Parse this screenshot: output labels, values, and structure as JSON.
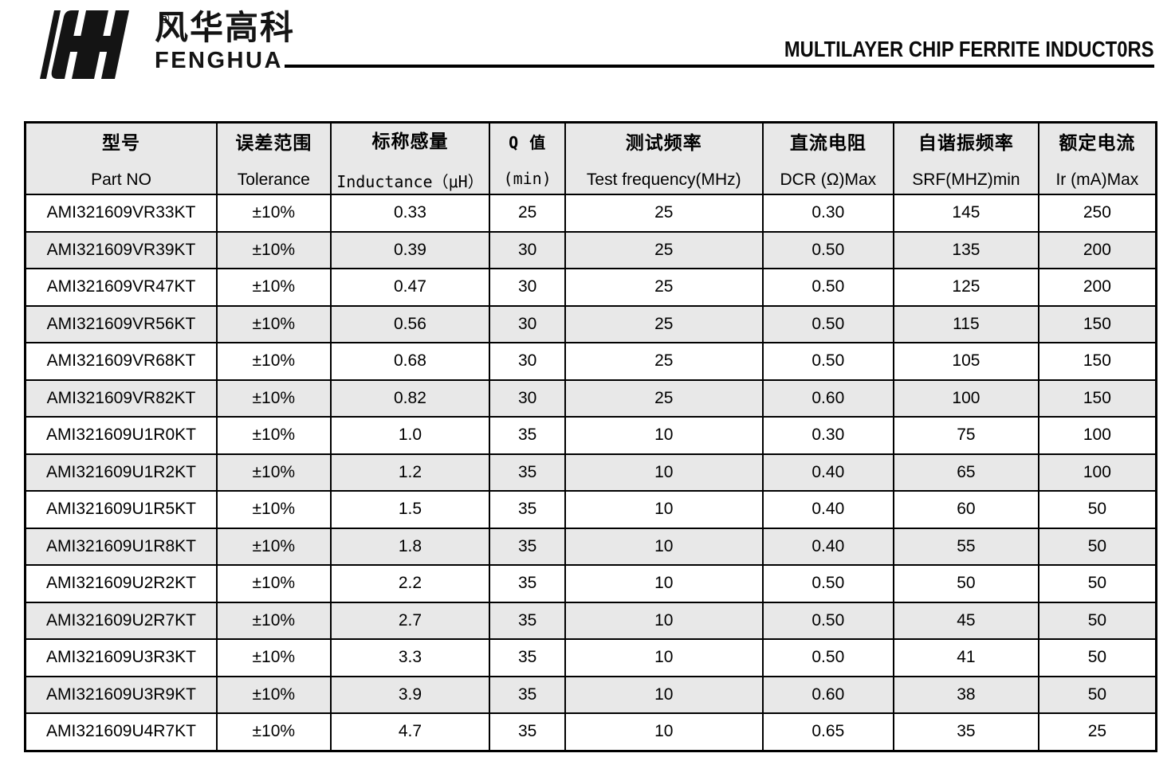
{
  "brand": {
    "registered_mark": "®",
    "name_cn": "风华高科",
    "name_en": "FENGHUA"
  },
  "page_title": "MULTILAYER CHIP FERRITE INDUCT0RS",
  "colors": {
    "stripe_bg": "#e8e8e8",
    "header_bg": "#e8e8e8",
    "border": "#000000",
    "text": "#000000"
  },
  "table": {
    "columns": [
      {
        "cn": "型号",
        "en": "Part NO"
      },
      {
        "cn": "误差范围",
        "en": "Tolerance"
      },
      {
        "cn": "标称感量",
        "en": "Inductance（μH）"
      },
      {
        "cn": "Q 值",
        "en": "(min)"
      },
      {
        "cn": "测试频率",
        "en": "Test frequency(MHz)"
      },
      {
        "cn": "直流电阻",
        "en": "DCR (Ω)Max"
      },
      {
        "cn": "自谐振频率",
        "en": "SRF(MHZ)min"
      },
      {
        "cn": "额定电流",
        "en": "Ir (mA)Max"
      }
    ],
    "rows": [
      [
        "AMI321609VR33KT",
        "±10%",
        "0.33",
        "25",
        "25",
        "0.30",
        "145",
        "250"
      ],
      [
        "AMI321609VR39KT",
        "±10%",
        "0.39",
        "30",
        "25",
        "0.50",
        "135",
        "200"
      ],
      [
        "AMI321609VR47KT",
        "±10%",
        "0.47",
        "30",
        "25",
        "0.50",
        "125",
        "200"
      ],
      [
        "AMI321609VR56KT",
        "±10%",
        "0.56",
        "30",
        "25",
        "0.50",
        "115",
        "150"
      ],
      [
        "AMI321609VR68KT",
        "±10%",
        "0.68",
        "30",
        "25",
        "0.50",
        "105",
        "150"
      ],
      [
        "AMI321609VR82KT",
        "±10%",
        "0.82",
        "30",
        "25",
        "0.60",
        "100",
        "150"
      ],
      [
        "AMI321609U1R0KT",
        "±10%",
        "1.0",
        "35",
        "10",
        "0.30",
        "75",
        "100"
      ],
      [
        "AMI321609U1R2KT",
        "±10%",
        "1.2",
        "35",
        "10",
        "0.40",
        "65",
        "100"
      ],
      [
        "AMI321609U1R5KT",
        "±10%",
        "1.5",
        "35",
        "10",
        "0.40",
        "60",
        "50"
      ],
      [
        "AMI321609U1R8KT",
        "±10%",
        "1.8",
        "35",
        "10",
        "0.40",
        "55",
        "50"
      ],
      [
        "AMI321609U2R2KT",
        "±10%",
        "2.2",
        "35",
        "10",
        "0.50",
        "50",
        "50"
      ],
      [
        "AMI321609U2R7KT",
        "±10%",
        "2.7",
        "35",
        "10",
        "0.50",
        "45",
        "50"
      ],
      [
        "AMI321609U3R3KT",
        "±10%",
        "3.3",
        "35",
        "10",
        "0.50",
        "41",
        "50"
      ],
      [
        "AMI321609U3R9KT",
        "±10%",
        "3.9",
        "35",
        "10",
        "0.60",
        "38",
        "50"
      ],
      [
        "AMI321609U4R7KT",
        "±10%",
        "4.7",
        "35",
        "10",
        "0.65",
        "35",
        "25"
      ]
    ]
  }
}
